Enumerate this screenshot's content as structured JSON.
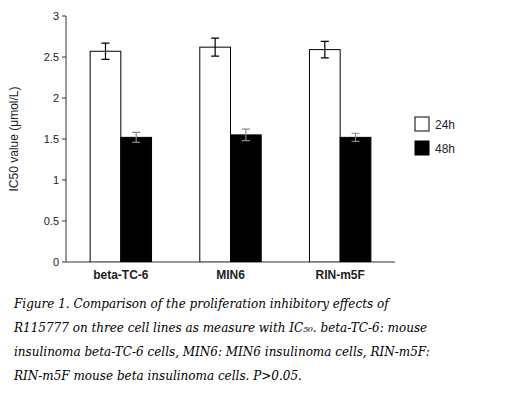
{
  "chart_data": {
    "type": "bar",
    "categories": [
      "beta-TC-6",
      "MIN6",
      "RIN-m5F"
    ],
    "series": [
      {
        "name": "24h",
        "color": "#ffffff",
        "values": [
          2.57,
          2.62,
          2.59
        ],
        "errors": [
          0.1,
          0.11,
          0.1
        ]
      },
      {
        "name": "48h",
        "color": "#000000",
        "values": [
          1.52,
          1.55,
          1.52
        ],
        "errors": [
          0.06,
          0.07,
          0.05
        ]
      }
    ],
    "ylabel": "IC50 value (μmol/L)",
    "ylim": [
      0,
      3.0
    ],
    "yticks": [
      0,
      0.5,
      1,
      1.5,
      2,
      2.5,
      3
    ],
    "grid": false,
    "legend": "right",
    "annotations": [
      "Figure 1.  Comparison of the proliferation inhibitory effects of",
      "R115777 on three cell lines as measure with IC₅₀. beta-TC-6: mouse",
      "insulinoma beta-TC-6 cells, MIN6: MIN6 insulinoma cells, RIN-m5F:",
      "RIN-m5F mouse beta insulinoma cells. P>0.05."
    ]
  }
}
